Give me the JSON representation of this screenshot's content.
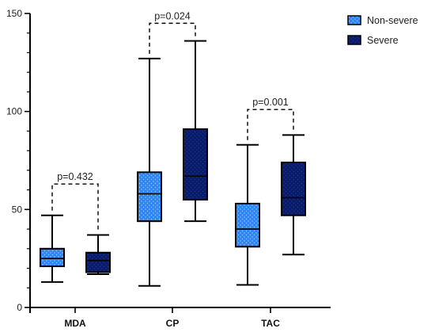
{
  "chart_data": {
    "type": "box",
    "categories": [
      "MDA",
      "CP",
      "TAC"
    ],
    "ylim": [
      0,
      150
    ],
    "yticks": [
      0,
      50,
      100,
      150
    ],
    "series": [
      {
        "name": "Non-severe",
        "color": "#2f86f2",
        "pattern": "dotted",
        "boxes": [
          {
            "min": 13,
            "q1": 21,
            "median": 25,
            "q3": 30,
            "max": 47
          },
          {
            "min": 11,
            "q1": 44,
            "median": 58,
            "q3": 69,
            "max": 127
          },
          {
            "min": 11.5,
            "q1": 31,
            "median": 40,
            "q3": 53,
            "max": 83
          }
        ]
      },
      {
        "name": "Severe",
        "color": "#081c6b",
        "pattern": "dotted",
        "boxes": [
          {
            "min": 17,
            "q1": 18,
            "median": 24,
            "q3": 28,
            "max": 37
          },
          {
            "min": 44,
            "q1": 55,
            "median": 67,
            "q3": 91,
            "max": 136
          },
          {
            "min": 27,
            "q1": 47,
            "median": 56,
            "q3": 74,
            "max": 88
          }
        ]
      }
    ],
    "annotations": [
      {
        "category": "MDA",
        "text": "p=0.432",
        "y": 63
      },
      {
        "category": "CP",
        "text": "p=0.024",
        "y": 145
      },
      {
        "category": "TAC",
        "text": "p=0.001",
        "y": 101
      }
    ],
    "legend": {
      "position": "top-right",
      "entries": [
        "Non-severe",
        "Severe"
      ]
    },
    "grid": false
  }
}
